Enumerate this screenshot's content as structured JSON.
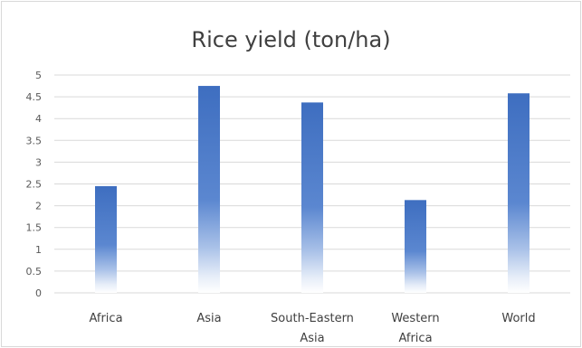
{
  "chart_data": {
    "type": "bar",
    "title": "Rice yield (ton/ha)",
    "categories": [
      [
        "Africa"
      ],
      [
        "Asia"
      ],
      [
        "South-Eastern",
        "Asia"
      ],
      [
        "Western",
        "Africa"
      ],
      [
        "World"
      ]
    ],
    "values": [
      2.45,
      4.75,
      4.37,
      2.13,
      4.58
    ],
    "ylim": [
      0,
      5
    ],
    "ytick_labels": [
      "0",
      "0.5",
      "1",
      "1.5",
      "2",
      "2.5",
      "3",
      "3.5",
      "4",
      "4.5",
      "5"
    ],
    "grid": true,
    "legend": "none",
    "bar_color": "#4472c4",
    "grid_color": "#d9d9d9"
  }
}
